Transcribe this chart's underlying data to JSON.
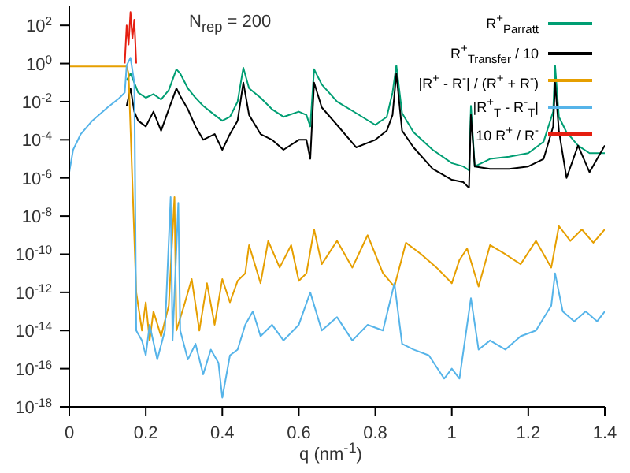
{
  "chart_data": {
    "type": "line",
    "xlabel": "q (nm$^{-1}$)",
    "annotations": [
      "N$_{rep}$ = 200"
    ],
    "log": "y",
    "legend": "top right",
    "marker": "none",
    "line_style": "solid",
    "xlim": [
      0,
      1.4
    ],
    "xticks": [
      0,
      0.2,
      0.4,
      0.6,
      0.8,
      1,
      1.2,
      1.4
    ],
    "ylim": [
      1e-18,
      1000
    ],
    "yticks": [
      {
        "value": 1e-18,
        "label": "10$^{-18}$"
      },
      {
        "value": 1e-16,
        "label": "10$^{-16}$"
      },
      {
        "value": 1e-14,
        "label": "10$^{-14}$"
      },
      {
        "value": 1e-12,
        "label": "10$^{-12}$"
      },
      {
        "value": 1e-10,
        "label": "10$^{-10}$"
      },
      {
        "value": 1e-08,
        "label": "10$^{-8}$"
      },
      {
        "value": 1e-06,
        "label": "10$^{-6}$"
      },
      {
        "value": 0.0001,
        "label": "10$^{-4}$"
      },
      {
        "value": 0.01,
        "label": "10$^{-2}$"
      },
      {
        "value": 1,
        "label": "10$^{0}$"
      },
      {
        "value": 100,
        "label": "10$^{2}$"
      }
    ],
    "series": [
      {
        "name": "R$^{+}$$_{Parratt}$",
        "color": "#009e73",
        "x": [
          0.15,
          0.16,
          0.17,
          0.18,
          0.2,
          0.22,
          0.24,
          0.26,
          0.28,
          0.29,
          0.31,
          0.33,
          0.35,
          0.38,
          0.4,
          0.42,
          0.44,
          0.455,
          0.47,
          0.5,
          0.53,
          0.56,
          0.6,
          0.62,
          0.63,
          0.64,
          0.66,
          0.7,
          0.75,
          0.8,
          0.83,
          0.845,
          0.855,
          0.87,
          0.9,
          0.95,
          1.0,
          1.03,
          1.045,
          1.05,
          1.06,
          1.1,
          1.15,
          1.2,
          1.24,
          1.265,
          1.27,
          1.28,
          1.3,
          1.33,
          1.36,
          1.4
        ],
        "values": [
          0.13,
          0.3,
          0.1,
          0.03,
          0.016,
          0.025,
          0.013,
          0.04,
          0.5,
          0.3,
          0.05,
          0.016,
          0.006,
          0.002,
          0.001,
          0.0016,
          0.01,
          0.6,
          0.05,
          0.016,
          0.004,
          0.0016,
          0.003,
          0.002,
          0.0005,
          0.5,
          0.08,
          0.01,
          0.0025,
          0.0006,
          0.0016,
          0.03,
          0.8,
          0.0025,
          0.00025,
          3e-05,
          6e-06,
          4e-06,
          2.5e-06,
          0.006,
          4e-06,
          1e-05,
          1.3e-05,
          2e-05,
          8e-05,
          0.003,
          0.8,
          0.0016,
          0.00025,
          5e-05,
          2e-05,
          2e-05
        ]
      },
      {
        "name": "R$^{+}$$_{Transfer}$ / 10",
        "color": "#000000",
        "x": [
          0.15,
          0.16,
          0.17,
          0.18,
          0.2,
          0.22,
          0.24,
          0.26,
          0.28,
          0.29,
          0.31,
          0.33,
          0.35,
          0.38,
          0.4,
          0.42,
          0.44,
          0.455,
          0.47,
          0.5,
          0.53,
          0.56,
          0.6,
          0.62,
          0.63,
          0.64,
          0.66,
          0.7,
          0.75,
          0.8,
          0.83,
          0.845,
          0.855,
          0.87,
          0.9,
          0.95,
          1.0,
          1.03,
          1.045,
          1.05,
          1.06,
          1.1,
          1.15,
          1.2,
          1.24,
          1.265,
          1.27,
          1.28,
          1.3,
          1.33,
          1.36,
          1.4
        ],
        "values": [
          0.006,
          0.05,
          0.003,
          0.001,
          0.0005,
          0.003,
          0.0003,
          0.004,
          0.05,
          0.02,
          0.004,
          0.0005,
          0.0001,
          0.0002,
          3e-05,
          0.0002,
          0.001,
          0.1,
          0.002,
          0.0002,
          0.0001,
          3e-05,
          0.0001,
          0.0001,
          1e-05,
          0.1,
          0.005,
          0.0006,
          4e-05,
          0.0001,
          0.0003,
          0.002,
          0.3,
          0.0003,
          4e-05,
          3e-06,
          8e-07,
          6e-07,
          3e-07,
          0.002,
          4e-06,
          3e-06,
          3e-06,
          4e-06,
          1e-05,
          0.0005,
          0.1,
          0.0003,
          1e-06,
          5e-05,
          2e-06,
          5e-05
        ]
      },
      {
        "name": "|R$^{+}$ - R$^{-}$| / (R$^{+}$ + R$^{-}$)",
        "color": "#e69f00",
        "x": [
          0,
          0.15,
          0.155,
          0.175,
          0.19,
          0.2,
          0.21,
          0.22,
          0.24,
          0.26,
          0.275,
          0.28,
          0.3,
          0.32,
          0.34,
          0.36,
          0.38,
          0.4,
          0.42,
          0.44,
          0.46,
          0.47,
          0.5,
          0.52,
          0.55,
          0.58,
          0.6,
          0.62,
          0.64,
          0.66,
          0.7,
          0.74,
          0.78,
          0.82,
          0.85,
          0.88,
          0.92,
          0.96,
          1.0,
          1.02,
          1.04,
          1.07,
          1.1,
          1.14,
          1.18,
          1.22,
          1.26,
          1.28,
          1.31,
          1.34,
          1.37,
          1.4
        ],
        "values": [
          0.7,
          0.7,
          0.3,
          1e-12,
          1e-14,
          3e-13,
          3e-15,
          1e-13,
          5e-15,
          2e-13,
          1e-07,
          1e-14,
          2e-13,
          5e-12,
          1e-14,
          3e-12,
          2e-14,
          5e-12,
          3e-13,
          4e-12,
          1e-11,
          3e-10,
          3e-12,
          5e-10,
          2e-11,
          3e-10,
          4e-12,
          1e-11,
          2e-09,
          3e-11,
          5e-10,
          2e-11,
          1e-09,
          1e-11,
          2e-12,
          4e-10,
          1e-10,
          2e-11,
          3e-12,
          5e-11,
          2e-10,
          2e-12,
          3e-10,
          1e-10,
          3e-11,
          5e-10,
          2e-11,
          3e-09,
          5e-10,
          2e-09,
          4e-10,
          2e-09
        ]
      },
      {
        "name": "|R$^{+}$$_{T}$ - R$^{-}$$_{T}$|",
        "color": "#56b4e9",
        "x": [
          0,
          0.01,
          0.03,
          0.06,
          0.1,
          0.13,
          0.145,
          0.15,
          0.16,
          0.17,
          0.175,
          0.19,
          0.2,
          0.21,
          0.23,
          0.25,
          0.265,
          0.27,
          0.285,
          0.29,
          0.31,
          0.33,
          0.35,
          0.37,
          0.39,
          0.4,
          0.42,
          0.44,
          0.46,
          0.48,
          0.5,
          0.53,
          0.56,
          0.6,
          0.63,
          0.66,
          0.7,
          0.74,
          0.78,
          0.82,
          0.85,
          0.87,
          0.9,
          0.94,
          0.98,
          1.0,
          1.02,
          1.05,
          1.07,
          1.1,
          1.14,
          1.18,
          1.22,
          1.26,
          1.27,
          1.29,
          1.32,
          1.35,
          1.38,
          1.4
        ],
        "values": [
          2e-06,
          3e-05,
          0.0002,
          0.001,
          0.005,
          0.015,
          0.03,
          0.8,
          2,
          0.1,
          1e-14,
          3e-15,
          5e-16,
          2e-14,
          3e-16,
          1e-14,
          1e-07,
          3e-15,
          5e-08,
          1e-14,
          3e-16,
          2e-15,
          5e-17,
          1e-15,
          2e-16,
          3e-18,
          5e-16,
          1e-15,
          2e-14,
          1e-13,
          5e-15,
          2e-14,
          3e-15,
          2e-14,
          1e-12,
          1e-14,
          5e-14,
          3e-15,
          2e-14,
          1e-14,
          3e-12,
          2e-15,
          1e-15,
          5e-16,
          3e-17,
          1e-16,
          3e-17,
          5e-13,
          1e-15,
          3e-15,
          1e-15,
          5e-15,
          1e-14,
          2e-13,
          1e-11,
          1e-13,
          3e-14,
          1e-13,
          3e-14,
          1e-13
        ]
      },
      {
        "name": "10 R$^{+}$ / R$^{-}$",
        "color": "#e51e10",
        "x": [
          0.145,
          0.15,
          0.155,
          0.16,
          0.165,
          0.17,
          0.175
        ],
        "values": [
          1,
          100,
          10,
          500,
          20,
          200,
          1
        ]
      }
    ]
  }
}
